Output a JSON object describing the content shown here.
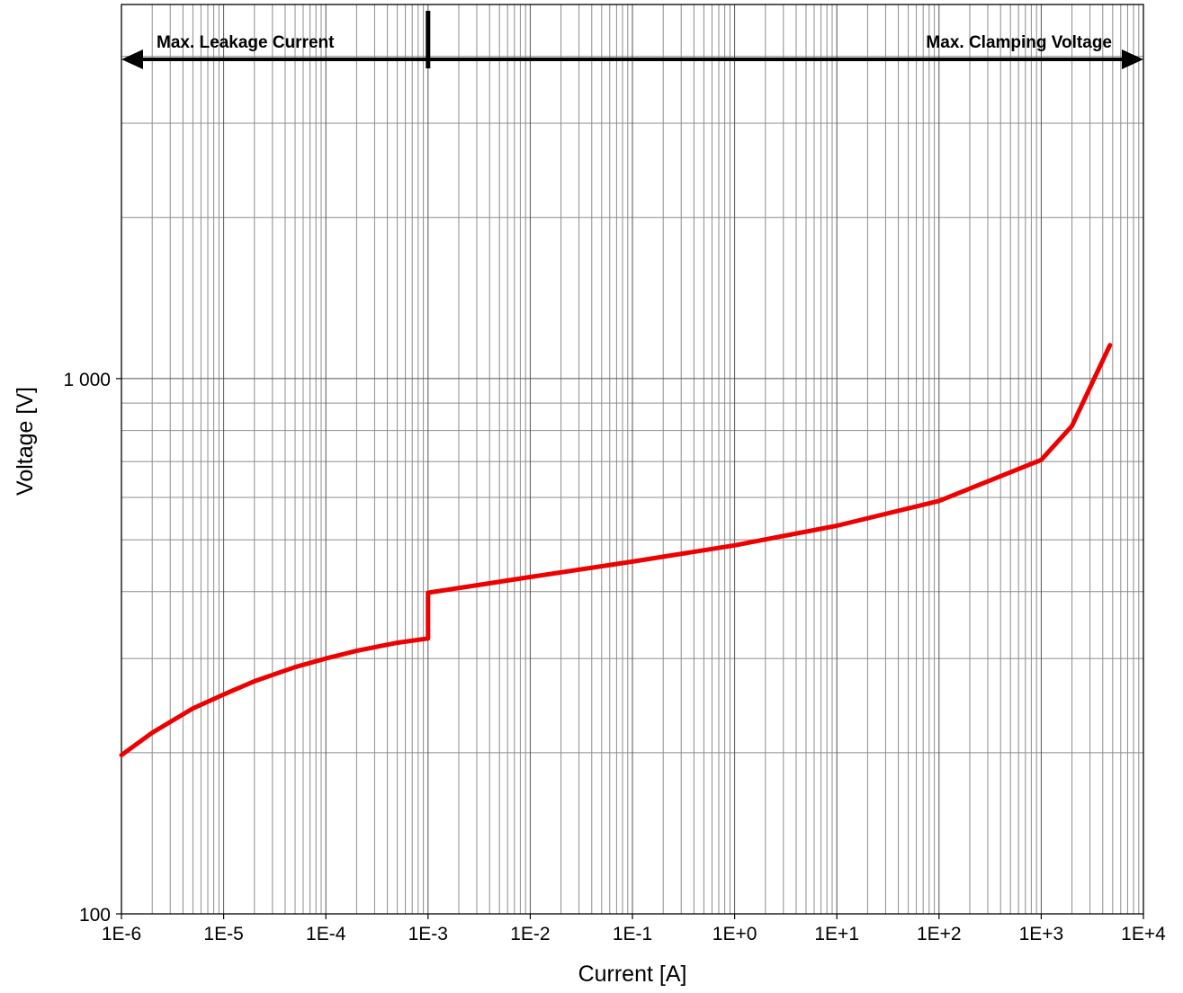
{
  "chart_data": {
    "type": "line",
    "title": "",
    "xlabel": "Current [A]",
    "ylabel": "Voltage [V]",
    "x_scale": "log",
    "y_scale": "log",
    "xlim": [
      1e-06,
      10000
    ],
    "ylim": [
      100,
      5000
    ],
    "grid": true,
    "x_tick_values": [
      1e-06,
      1e-05,
      0.0001,
      0.001,
      0.01,
      0.1,
      1,
      10,
      100,
      1000,
      10000
    ],
    "x_tick_labels": [
      "1E-6",
      "1E-5",
      "1E-4",
      "1E-3",
      "1E-2",
      "1E-1",
      "1E+0",
      "1E+1",
      "1E+2",
      "1E+3",
      "1E+4"
    ],
    "y_tick_values": [
      100,
      1000
    ],
    "y_tick_labels": [
      "100",
      "1 000"
    ],
    "annotations": {
      "left_region_label": "Max. Leakage Current",
      "right_region_label": "Max. Clamping Voltage",
      "divider_x": 0.001
    },
    "series": [
      {
        "color": "#ee0000",
        "segments": [
          {
            "x": [
              1e-06,
              2e-06,
              5e-06,
              1e-05,
              2e-05,
              5e-05,
              0.0001,
              0.0002,
              0.0005,
              0.001
            ],
            "y": [
              198,
              218,
              242,
              257,
              272,
              289,
              300,
              310,
              321,
              327
            ]
          },
          {
            "x": [
              0.001,
              0.01,
              0.1,
              1,
              10,
              100,
              1000,
              2000,
              4700
            ],
            "y": [
              398,
              426,
              455,
              488,
              531,
              591,
              705,
              816,
              1155
            ]
          }
        ]
      }
    ]
  }
}
